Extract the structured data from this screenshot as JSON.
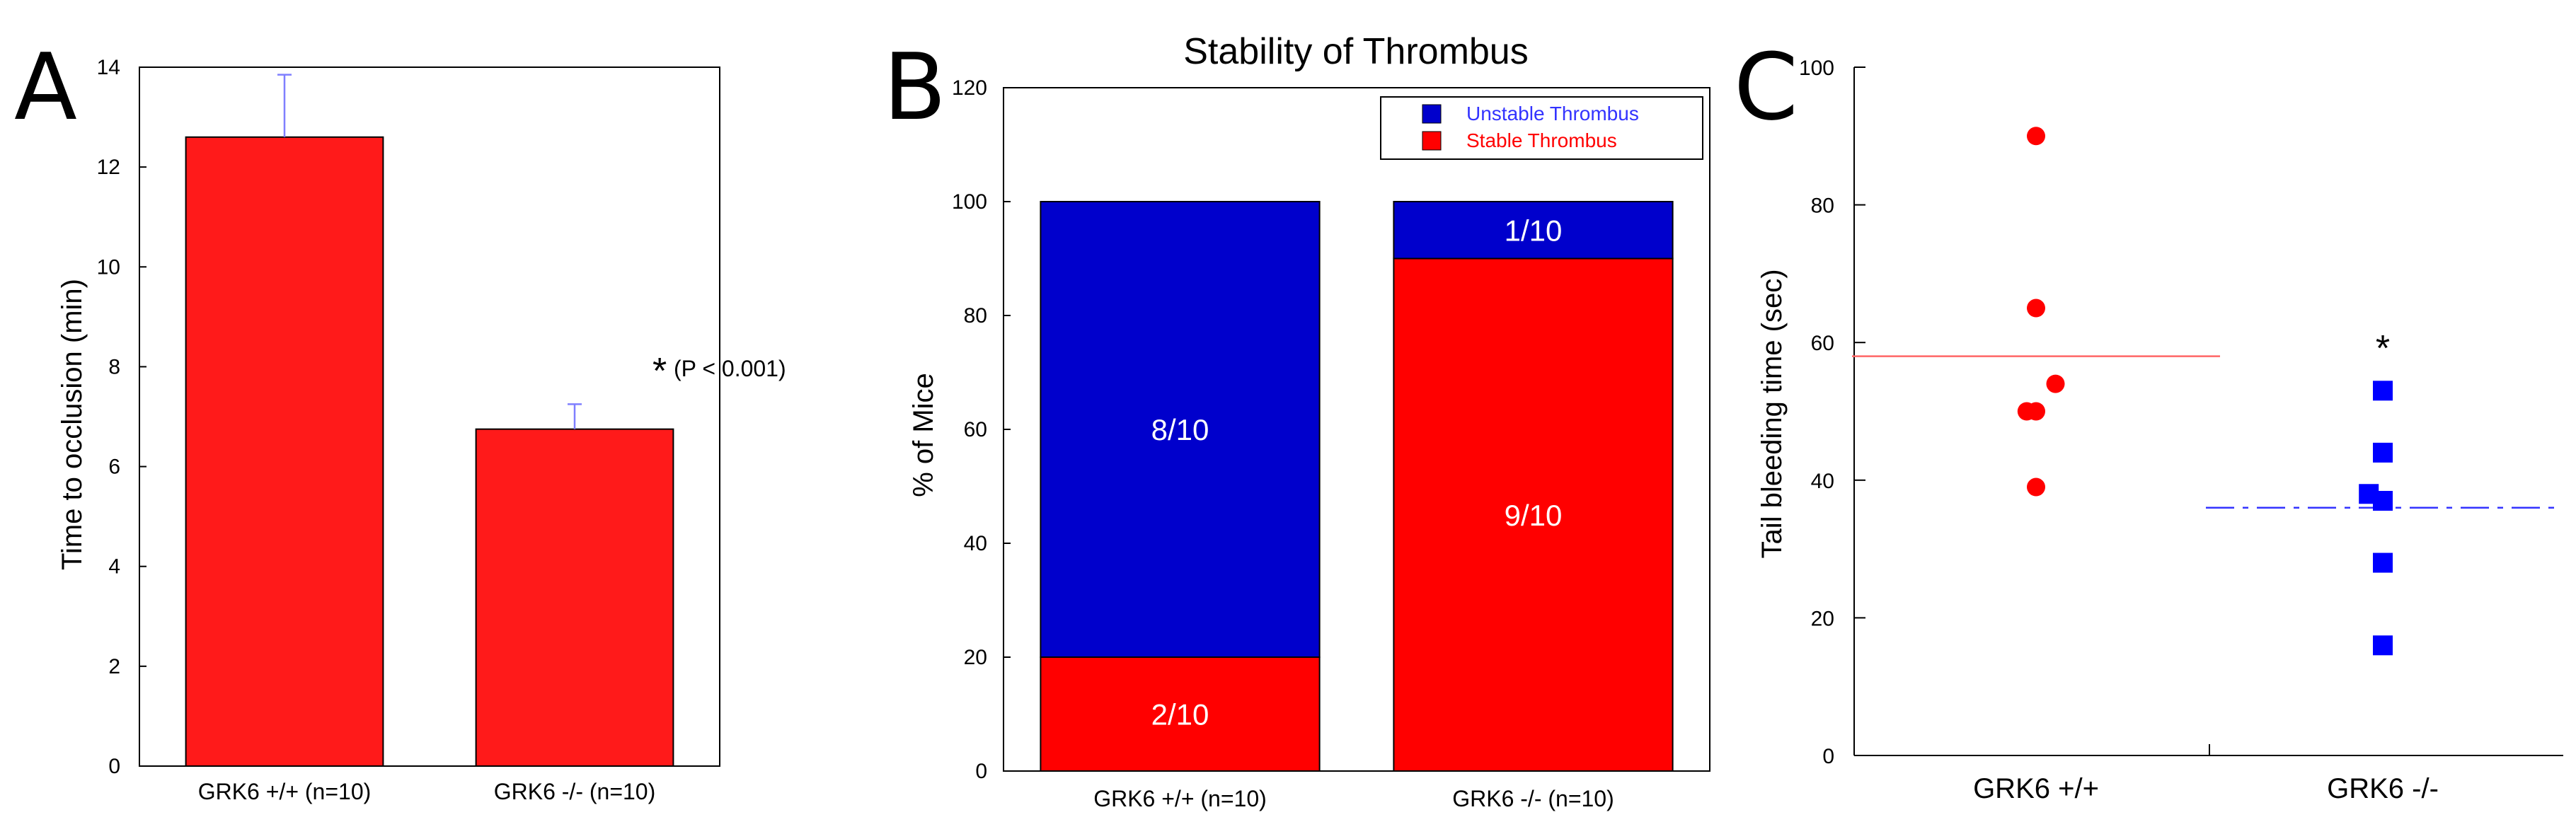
{
  "panels": {
    "a": "A",
    "b": "B",
    "c": "C"
  },
  "chart_data": [
    {
      "type": "bar",
      "panel": "A",
      "ylabel": "Time to occlusion (min)",
      "ylim": [
        0,
        14
      ],
      "yticks": [
        "0",
        "2",
        "4",
        "6",
        "8",
        "10",
        "12",
        "14"
      ],
      "categories": [
        "GRK6 +/+ (n=10)",
        "GRK6 -/- (n=10)"
      ],
      "values": [
        12.6,
        6.75
      ],
      "errors": [
        1.25,
        0.5
      ],
      "bar_color": "#ff1a1a",
      "error_color": "#7f7fff",
      "annotation_star": "*",
      "annotation_text": "(P < 0.001)"
    },
    {
      "type": "bar",
      "stacked": true,
      "panel": "B",
      "title": "Stability of Thrombus",
      "ylabel": "% of Mice",
      "ylim": [
        0,
        120
      ],
      "yticks": [
        "0",
        "20",
        "40",
        "60",
        "80",
        "100",
        "120"
      ],
      "categories": [
        "GRK6 +/+ (n=10)",
        "GRK6 -/- (n=10)"
      ],
      "series": [
        {
          "name": "Stable Thrombus",
          "color": "#ff0000",
          "values": [
            20,
            90
          ],
          "labels": [
            "2/10",
            "9/10"
          ]
        },
        {
          "name": "Unstable Thrombus",
          "color": "#0000cc",
          "values": [
            80,
            10
          ],
          "labels": [
            "8/10",
            "1/10"
          ]
        }
      ],
      "legend": [
        "Unstable Thrombus",
        "Stable Thrombus"
      ],
      "legend_colors": [
        "#0000ff",
        "#ff0000"
      ],
      "legend_position": "top-right"
    },
    {
      "type": "scatter",
      "panel": "C",
      "ylabel": "Tail bleeding time (sec)",
      "ylim": [
        0,
        100
      ],
      "yticks": [
        "0",
        "20",
        "40",
        "60",
        "80",
        "100"
      ],
      "categories": [
        "GRK6 +/+",
        "GRK6 -/-"
      ],
      "series": [
        {
          "name": "GRK6 +/+",
          "marker": "circle",
          "color": "#ff0000",
          "mean": 58,
          "mean_color": "#ff6666",
          "points": [
            [
              0,
              90
            ],
            [
              0,
              65
            ],
            [
              -0.6,
              50
            ],
            [
              0,
              50
            ],
            [
              1.25,
              54
            ],
            [
              0,
              39
            ]
          ]
        },
        {
          "name": "GRK6 -/-",
          "marker": "square",
          "color": "#0000ff",
          "mean": 36,
          "mean_color": "#3333ff",
          "points": [
            [
              0,
              53
            ],
            [
              0,
              44
            ],
            [
              -0.9,
              38
            ],
            [
              0,
              37
            ],
            [
              0,
              28
            ],
            [
              0,
              16
            ]
          ]
        }
      ],
      "annotation_star": "*"
    }
  ]
}
